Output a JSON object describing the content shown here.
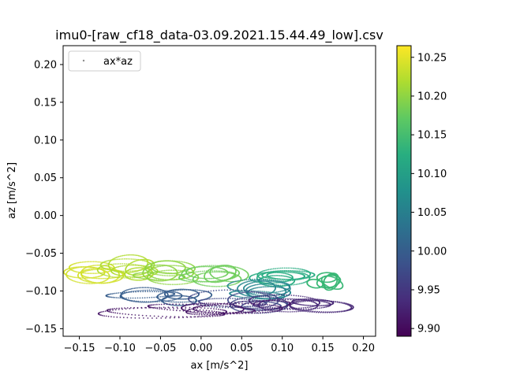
{
  "chart_data": {
    "type": "scatter",
    "title": "imu0-[raw_cf18_data-03.09.2021.15.44.49_low].csv",
    "xlabel": "ax [m/s^2]",
    "ylabel": "az [m/s^2]",
    "xlim": [
      -0.17,
      0.215
    ],
    "ylim": [
      -0.16,
      0.225
    ],
    "xticks": [
      -0.15,
      -0.1,
      -0.05,
      0.0,
      0.05,
      0.1,
      0.15,
      0.2
    ],
    "xtick_labels": [
      "−0.15",
      "−0.10",
      "−0.05",
      "0.00",
      "0.05",
      "0.10",
      "0.15",
      "0.20"
    ],
    "yticks": [
      -0.15,
      -0.1,
      -0.05,
      0.0,
      0.05,
      0.1,
      0.15,
      0.2
    ],
    "ytick_labels": [
      "−0.15",
      "−0.10",
      "−0.05",
      "0.00",
      "0.05",
      "0.10",
      "0.15",
      "0.20"
    ],
    "grid": false,
    "legend": {
      "entries": [
        "ax*az"
      ],
      "placement": "upper-left"
    },
    "colorbar": {
      "colormap": "viridis",
      "range": [
        9.89,
        10.265
      ],
      "ticks": [
        9.9,
        9.95,
        10.0,
        10.05,
        10.1,
        10.15,
        10.2,
        10.25
      ],
      "tick_labels": [
        "9.90",
        "9.95",
        "10.00",
        "10.05",
        "10.10",
        "10.15",
        "10.20",
        "10.25"
      ]
    },
    "series": [
      {
        "name": "ax*az",
        "clusters": [
          {
            "c": 10.24,
            "x": -0.13,
            "y": -0.075,
            "rx": 0.03,
            "ry": 0.012
          },
          {
            "c": 10.22,
            "x": -0.09,
            "y": -0.072,
            "rx": 0.035,
            "ry": 0.014
          },
          {
            "c": 10.2,
            "x": -0.04,
            "y": -0.075,
            "rx": 0.04,
            "ry": 0.012
          },
          {
            "c": 10.18,
            "x": 0.02,
            "y": -0.08,
            "rx": 0.04,
            "ry": 0.012
          },
          {
            "c": 10.12,
            "x": 0.1,
            "y": -0.085,
            "rx": 0.04,
            "ry": 0.012
          },
          {
            "c": 10.14,
            "x": 0.15,
            "y": -0.085,
            "rx": 0.02,
            "ry": 0.012
          },
          {
            "c": 10.06,
            "x": 0.08,
            "y": -0.1,
            "rx": 0.04,
            "ry": 0.012
          },
          {
            "c": 10.0,
            "x": -0.05,
            "y": -0.11,
            "rx": 0.05,
            "ry": 0.01
          },
          {
            "c": 9.97,
            "x": 0.05,
            "y": -0.115,
            "rx": 0.06,
            "ry": 0.012
          },
          {
            "c": 9.93,
            "x": 0.13,
            "y": -0.12,
            "rx": 0.05,
            "ry": 0.01
          },
          {
            "c": 9.91,
            "x": 0.0,
            "y": -0.125,
            "rx": 0.08,
            "ry": 0.008
          }
        ]
      }
    ]
  }
}
